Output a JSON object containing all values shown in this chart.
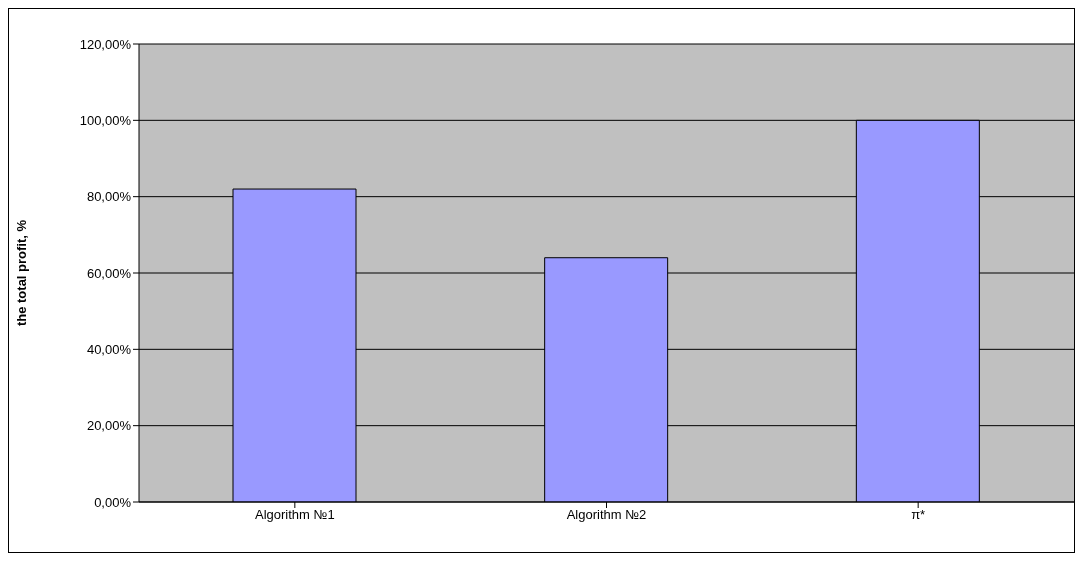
{
  "chart_data": {
    "type": "bar",
    "ylabel": "the total profit, %",
    "categories": [
      "Algorithm №1",
      "Algorithm №2",
      "π*"
    ],
    "values": [
      82,
      64,
      100
    ],
    "color": "#9999ff",
    "ylim": [
      0,
      120
    ],
    "yticks": [
      {
        "value": 0,
        "label": "0,00%"
      },
      {
        "value": 20,
        "label": "20,00%"
      },
      {
        "value": 40,
        "label": "40,00%"
      },
      {
        "value": 60,
        "label": "60,00%"
      },
      {
        "value": 80,
        "label": "80,00%"
      },
      {
        "value": 100,
        "label": "100,00%"
      },
      {
        "value": 120,
        "label": "120,00%"
      }
    ],
    "grid": "y"
  }
}
